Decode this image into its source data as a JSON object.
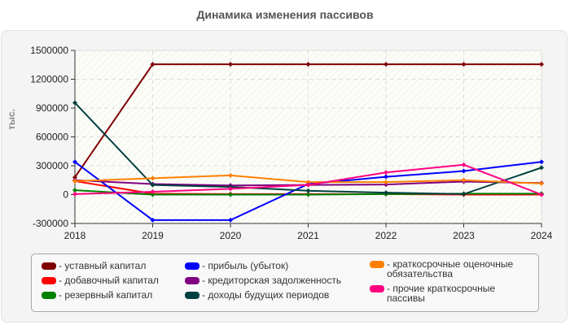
{
  "chart_data": {
    "type": "line",
    "title": "Динамика изменения пассивов",
    "xlabel": "",
    "ylabel": "тыс.",
    "x": [
      "2018",
      "2019",
      "2020",
      "2021",
      "2022",
      "2023",
      "2024"
    ],
    "ylim": [
      -300000,
      1500000
    ],
    "yticks": [
      "1500000",
      "1200000",
      "900000",
      "600000",
      "300000",
      "0",
      "-300000"
    ],
    "ytick_values": [
      1500000,
      1200000,
      900000,
      600000,
      300000,
      0,
      -300000
    ],
    "grid": true,
    "legend_position": "bottom",
    "series": [
      {
        "name": "уставный капитал",
        "color": "#800000",
        "values": [
          180000,
          1355000,
          1355000,
          1355000,
          1355000,
          1355000,
          1355000
        ]
      },
      {
        "name": "добавочный капитал",
        "color": "#ff0000",
        "values": [
          140000,
          10000,
          5000,
          5000,
          5000,
          0,
          0
        ]
      },
      {
        "name": "резервный капитал",
        "color": "#008000",
        "values": [
          45000,
          0,
          0,
          0,
          5000,
          10000,
          10000
        ]
      },
      {
        "name": "прибыль (убыток)",
        "color": "#0000ff",
        "values": [
          340000,
          -265000,
          -265000,
          110000,
          185000,
          245000,
          340000
        ]
      },
      {
        "name": "кредиторская задолженность",
        "color": "#800080",
        "values": [
          150000,
          110000,
          95000,
          100000,
          105000,
          135000,
          120000
        ]
      },
      {
        "name": "доходы будущих периодов",
        "color": "#004040",
        "values": [
          955000,
          100000,
          80000,
          40000,
          20000,
          5000,
          280000
        ]
      },
      {
        "name": "краткосрочные оценочные обязательства",
        "color": "#ff8000",
        "values": [
          140000,
          170000,
          200000,
          130000,
          130000,
          150000,
          115000
        ]
      },
      {
        "name": "прочие краткосрочные пассивы",
        "color": "#ff0080",
        "values": [
          5000,
          30000,
          60000,
          100000,
          230000,
          310000,
          0
        ]
      }
    ]
  },
  "header": {
    "title": "Динамика изменения пассивов"
  },
  "axis": {
    "ylabel": "тыс."
  },
  "legend": {
    "items": [
      {
        "label": "- уставный капитал",
        "color": "#800000"
      },
      {
        "label": "- добавочный капитал",
        "color": "#ff0000"
      },
      {
        "label": "- резервный капитал",
        "color": "#008000"
      },
      {
        "label": "- прибыль (убыток)",
        "color": "#0000ff"
      },
      {
        "label": "- кредиторская задолженность",
        "color": "#800080"
      },
      {
        "label": "- доходы будущих периодов",
        "color": "#004040"
      },
      {
        "label": "- краткосрочные оценочные\nобязательства",
        "color": "#ff8000"
      },
      {
        "label": "- прочие краткосрочные\nпассивы",
        "color": "#ff0080"
      }
    ]
  }
}
